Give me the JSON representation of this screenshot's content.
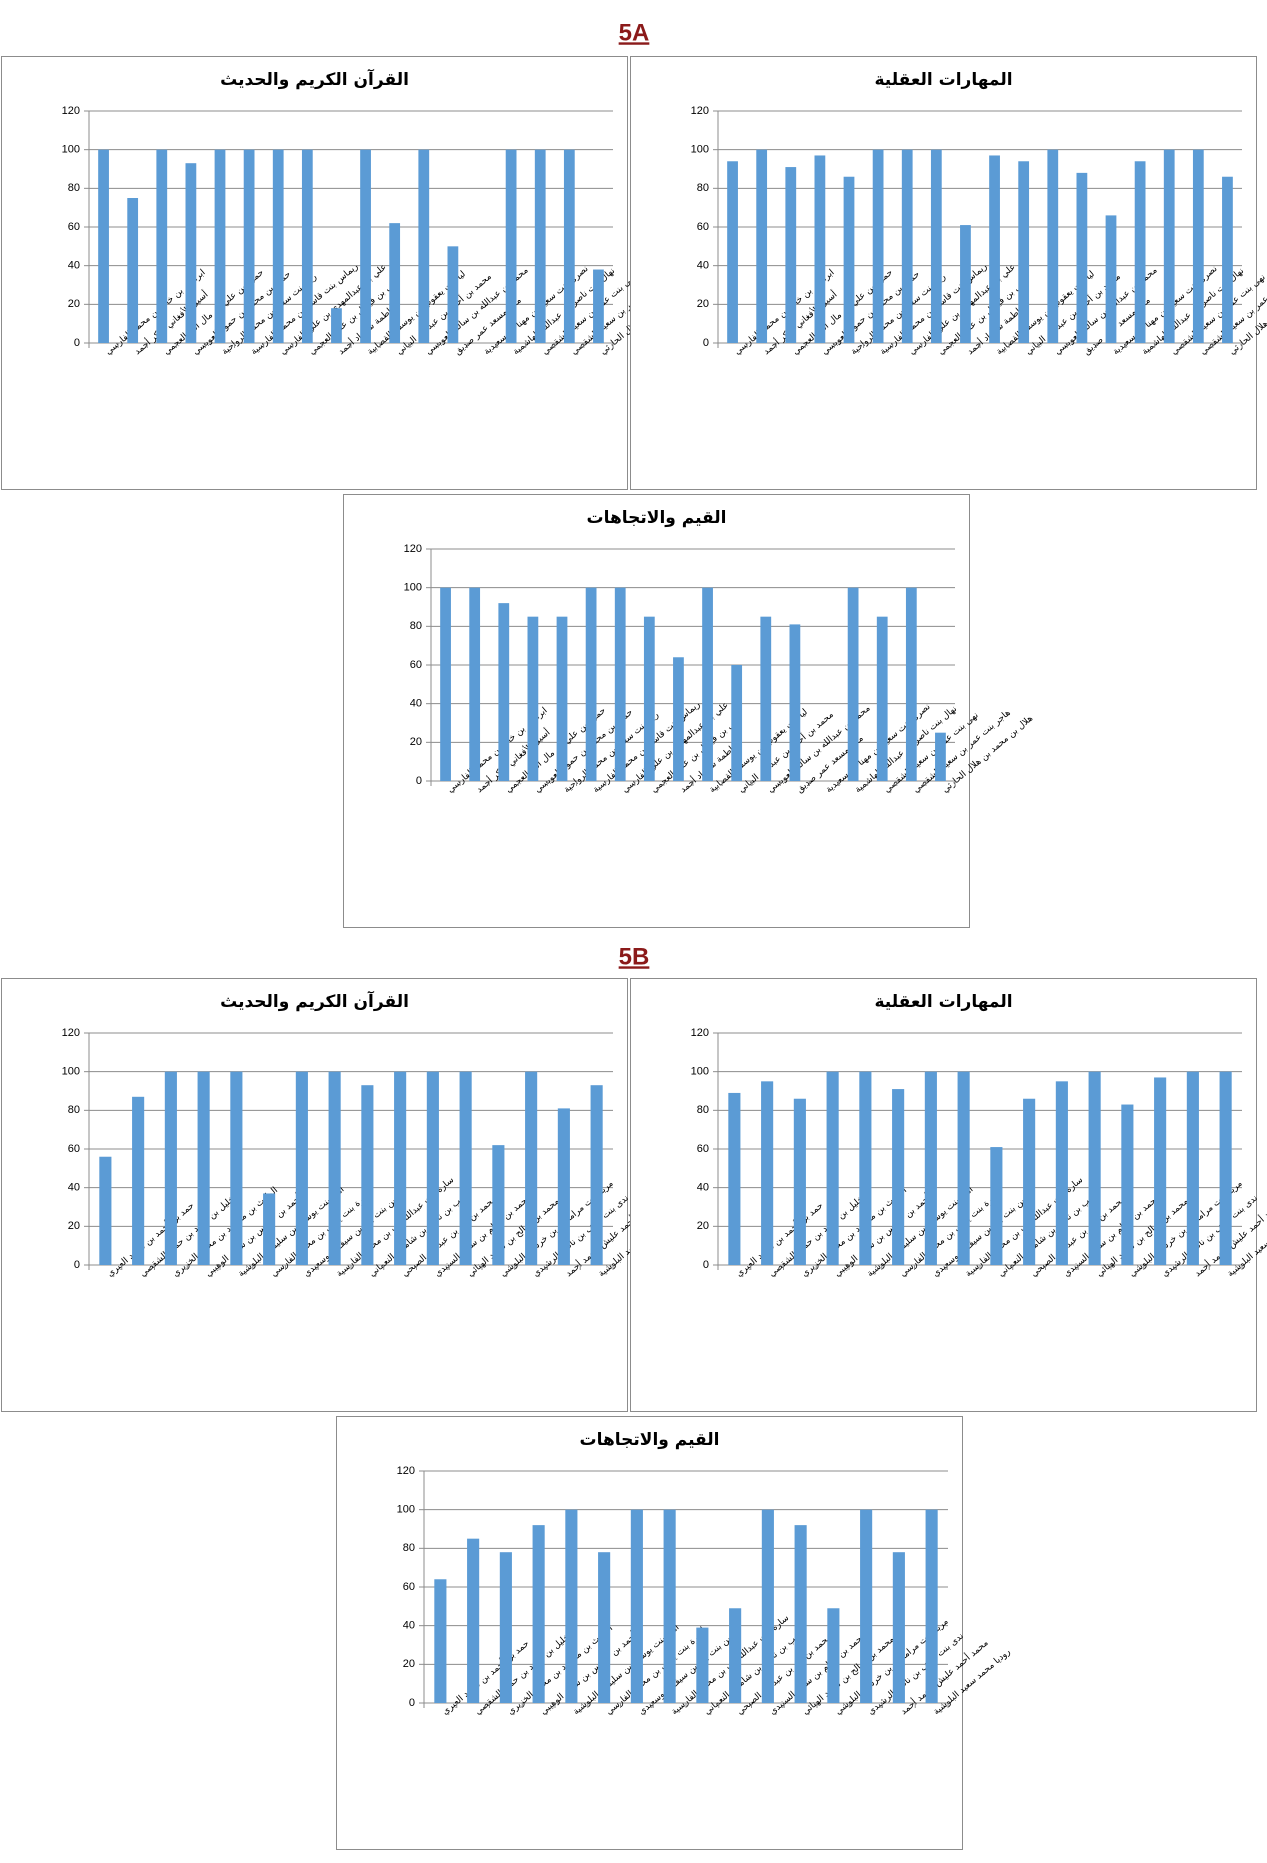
{
  "headings": [
    "5A",
    "5B"
  ],
  "chart_data": [
    {
      "type": "bar",
      "title": "القرآن الكريم والحديث",
      "color": "#5b9bd5",
      "ylim": [
        0,
        120
      ],
      "yticks": [
        0,
        20,
        40,
        60,
        80,
        100,
        120
      ],
      "grid": true,
      "categories": [
        "ابراهيم بن خالد بن محمد الفارسي",
        "أسيل الأفغاني بابكر أحمد",
        "حمزة بن علي بن مال الله العجمي",
        "حمود بن محمد بن حمود العويسي",
        "ريم بنت سعيد بن محمد الرواحية",
        "ريماس بنت قاسم بن محمد الفارسية",
        "علي بن عبدالمهدي بن علي الفارسي",
        "علي بن فيصل بن علي العجمي",
        "فاطمة شهزاد أحمد",
        "ليا بنت يعقوب بن يوسف القصابية",
        "محمد بن أحمد بن عبدالله البياني",
        "محمد بن عبدالله بن سالم العويسي",
        "ملك مسعد عمر صديق",
        "نصرى بنت سعيد بن مهنا البوسعيدية",
        "نهال بنت ناصر بن عبدالله الهاشمية",
        "نهى بنت عمر بن سعيد الشقصي",
        "هاجر بنت عمر بن سعيد الشقصي",
        "هلال بن محمد بن هلال الحارثي"
      ],
      "values": [
        100,
        75,
        100,
        93,
        100,
        100,
        100,
        100,
        18,
        100,
        62,
        100,
        50,
        null,
        100,
        100,
        100,
        38
      ]
    },
    {
      "type": "bar",
      "title": "المهارات العقلية",
      "color": "#5b9bd5",
      "ylim": [
        0,
        120
      ],
      "yticks": [
        0,
        20,
        40,
        60,
        80,
        100,
        120
      ],
      "grid": true,
      "categories": [
        "ابراهيم بن خالد بن محمد الفارسي",
        "أسيل الأفغاني بابكر أحمد",
        "حمزة بن علي بن مال الله العجمي",
        "حمود بن محمد بن حمود العويسي",
        "ريم بنت سعيد بن محمد الرواحية",
        "ريماس بنت قاسم بن محمد الفارسية",
        "علي بن عبدالمهدي بن علي الفارسي",
        "علي بن فيصل بن علي العجمي",
        "فاطمة شهزاد أحمد",
        "ليا بنت يعقوب بن يوسف القصابية",
        "محمد بن أحمد بن عبدالله البياني",
        "محمد بن عبدالله بن سالم العويسي",
        "ملك مسعد عمر صديق",
        "نصرى بنت سعيد بن مهنا البوسعيدية",
        "نهال بنت ناصر بن عبدالله الهاشمية",
        "نهى بنت عمر بن سعيد الشقصي",
        "هاجر بنت عمر بن سعيد الشقصي",
        "هلال بن محمد بن هلال الحارثي"
      ],
      "values": [
        94,
        100,
        91,
        97,
        86,
        100,
        100,
        100,
        61,
        97,
        94,
        100,
        88,
        66,
        94,
        100,
        100,
        86
      ]
    },
    {
      "type": "bar",
      "title": "القيم والاتجاهات",
      "color": "#5b9bd5",
      "ylim": [
        0,
        120
      ],
      "yticks": [
        0,
        20,
        40,
        60,
        80,
        100,
        120
      ],
      "grid": true,
      "categories": [
        "ابراهيم بن خالد بن محمد الفارسي",
        "أسيل الأفغاني بابكر أحمد",
        "حمزة بن علي بن مال الله العجمي",
        "حمود بن محمد بن حمود العويسي",
        "ريم بنت سعيد بن محمد الرواحية",
        "ريماس بنت قاسم بن محمد الفارسية",
        "علي بن عبدالمهدي بن علي الفارسي",
        "علي بن فيصل بن علي العجمي",
        "فاطمة شهزاد أحمد",
        "ليا بنت يعقوب بن يوسف القصابية",
        "محمد بن أحمد بن عبدالله البياني",
        "محمد بن عبدالله بن سالم العويسي",
        "ملك مسعد عمر صديق",
        "نصرى بنت سعيد بن مهنا البوسعيدية",
        "نهال بنت ناصر بن عبدالله الهاشمية",
        "نهى بنت عمر بن سعيد الشقصي",
        "هاجر بنت عمر بن سعيد الشقصي",
        "هلال بن محمد بن هلال الحارثي"
      ],
      "values": [
        100,
        100,
        92,
        85,
        85,
        100,
        100,
        85,
        64,
        100,
        60,
        85,
        81,
        null,
        100,
        85,
        100,
        25
      ]
    },
    {
      "type": "bar",
      "title": "القرآن الكريم والحديث",
      "color": "#5b9bd5",
      "ylim": [
        0,
        120
      ],
      "yticks": [
        0,
        20,
        40,
        60,
        80,
        100,
        120
      ],
      "grid": true,
      "categories": [
        "حمد بن أحمد بن سعيد العبري",
        "الخليل بن أحمد بن حميد الشقصي",
        "الوارث بن محمود بن محمد الخزيري",
        "أحمد بن خميس بن سالم الوهيبي",
        "أمنة بنت يوسف بن سليمان البلوشية",
        "أميرة بنت يحيى بن محمد الفارسي",
        "دارين بنت بدر بن سيف البوسعيدي",
        "سارة بنت عبداللطيف بن محمد الفارسية",
        "صهيب بن ناصر بن شامس النعماني",
        "محمد بن بدر بن عبدالله الصبحي",
        "محمد بن سالم بن سعيد السنيدي",
        "محمد بن صالح بن سعيد الهنائي",
        "مريم بنت مرامحان بن خرشيد البلوشي",
        "ندى بنت سيف بن ناصر الرشيدي",
        "محمد أحمد عليش محمد أحمد",
        "روديا محمد سعيد البلوشية"
      ],
      "values": [
        56,
        87,
        100,
        100,
        100,
        37,
        100,
        100,
        93,
        100,
        100,
        100,
        62,
        100,
        81,
        93
      ]
    },
    {
      "type": "bar",
      "title": "المهارات العقلية",
      "color": "#5b9bd5",
      "ylim": [
        0,
        120
      ],
      "yticks": [
        0,
        20,
        40,
        60,
        80,
        100,
        120
      ],
      "grid": true,
      "categories": [
        "حمد بن أحمد بن سعيد العبري",
        "الخليل بن أحمد بن حميد الشقصي",
        "الوارث بن محمود بن محمد الخزيري",
        "أحمد بن خميس بن سالم الوهيبي",
        "أمنة بنت يوسف بن سليمان البلوشية",
        "أميرة بنت يحيى بن محمد الفارسي",
        "دارين بنت بدر بن سيف البوسعيدي",
        "سارة بنت عبداللطيف بن محمد الفارسية",
        "صهيب بن ناصر بن شامس النعماني",
        "محمد بن بدر بن عبدالله الصبحي",
        "محمد بن سالم بن سعيد السنيدي",
        "محمد بن صالح بن سعيد الهنائي",
        "مريم بنت مرامحان بن خرشيد البلوشي",
        "ندى بنت سيف بن ناصر الرشيدي",
        "محمد أحمد عليش محمد أحمد",
        "روديا محمد سعيد البلوشية"
      ],
      "values": [
        89,
        95,
        86,
        100,
        100,
        91,
        100,
        100,
        61,
        86,
        95,
        100,
        83,
        97,
        100,
        100
      ]
    },
    {
      "type": "bar",
      "title": "القيم والاتجاهات",
      "color": "#5b9bd5",
      "ylim": [
        0,
        120
      ],
      "yticks": [
        0,
        20,
        40,
        60,
        80,
        100,
        120
      ],
      "grid": true,
      "categories": [
        "حمد بن أحمد بن سعيد العبري",
        "الخليل بن أحمد بن حميد الشقصي",
        "الوارث بن محمود بن محمد الخزيري",
        "أحمد بن خميس بن سالم الوهيبي",
        "أمنة بنت يوسف بن سليمان البلوشية",
        "أميرة بنت يحيى بن محمد الفارسي",
        "دارين بنت بدر بن سيف البوسعيدي",
        "سارة بنت عبداللطيف بن محمد الفارسية",
        "صهيب بن ناصر بن شامس النعماني",
        "محمد بن بدر بن عبدالله الصبحي",
        "محمد بن سالم بن سعيد السنيدي",
        "محمد بن صالح بن سعيد الهنائي",
        "مريم بنت مرامحان بن خرشيد البلوشي",
        "ندى بنت سيف بن ناصر الرشيدي",
        "محمد أحمد عليش محمد أحمد",
        "روديا محمد سعيد البلوشية"
      ],
      "values": [
        64,
        85,
        78,
        92,
        100,
        78,
        100,
        100,
        39,
        49,
        100,
        92,
        49,
        100,
        78,
        100
      ]
    }
  ]
}
